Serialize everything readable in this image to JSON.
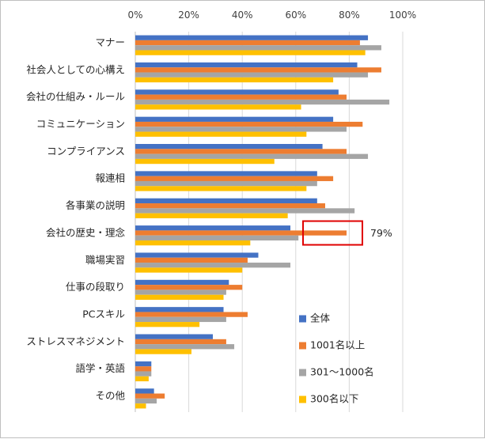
{
  "chart_data": {
    "type": "bar",
    "orientation": "horizontal",
    "categories": [
      "マナー",
      "社会人としての心構え",
      "会社の仕組み・ルール",
      "コミュニケーション",
      "コンプライアンス",
      "報連相",
      "各事業の説明",
      "会社の歴史・理念",
      "職場実習",
      "仕事の段取り",
      "PCスキル",
      "ストレスマネジメント",
      "語学・英語",
      "その他"
    ],
    "x_ticks": [
      "0%",
      "20%",
      "40%",
      "60%",
      "80%",
      "100%"
    ],
    "xlim": [
      0,
      100
    ],
    "grid": true,
    "legend_position": "right",
    "series": [
      {
        "name": "全体",
        "color": "#4472C4",
        "values": [
          87,
          83,
          76,
          74,
          70,
          68,
          68,
          58,
          46,
          35,
          33,
          29,
          6,
          7
        ]
      },
      {
        "name": "1001名以上",
        "color": "#ED7D31",
        "values": [
          84,
          92,
          79,
          85,
          79,
          74,
          71,
          79,
          42,
          40,
          42,
          34,
          6,
          11
        ]
      },
      {
        "name": "301～1000名",
        "color": "#A5A5A5",
        "values": [
          92,
          87,
          95,
          79,
          87,
          68,
          82,
          61,
          58,
          34,
          34,
          37,
          6,
          8
        ]
      },
      {
        "name": "300名以下",
        "color": "#FFC000",
        "values": [
          86,
          74,
          62,
          64,
          52,
          64,
          57,
          43,
          40,
          33,
          24,
          21,
          5,
          4
        ]
      }
    ],
    "annotation": {
      "text": "79%",
      "category": "会社の歴史・理念",
      "series": "1001名以上",
      "box_color": "#E00000"
    }
  }
}
